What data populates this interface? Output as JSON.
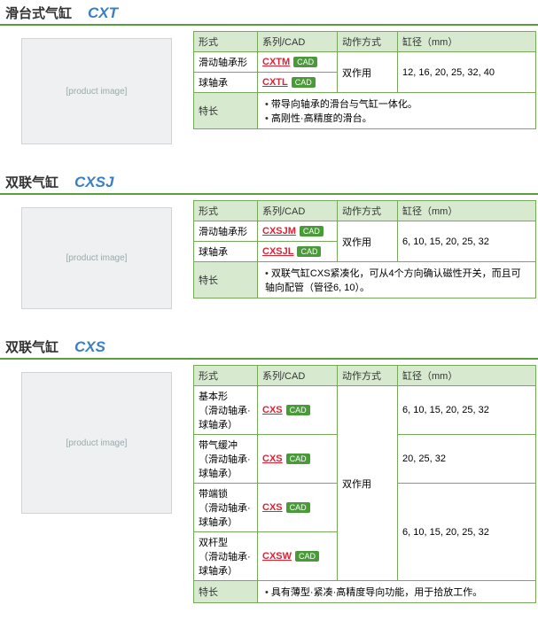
{
  "headers": {
    "type": "形式",
    "series": "系列/CAD",
    "action": "动作方式",
    "bore": "缸径（mm）",
    "feature": "特长"
  },
  "cad_label": "CAD",
  "sections": [
    {
      "title_cn": "滑台式气缸",
      "title_en": "CXT",
      "img_h": "ph1",
      "rows": [
        {
          "type": "滑动轴承形",
          "series": "CXTM",
          "action": "双作用",
          "bore": "12, 16, 20, 25, 32, 40",
          "action_rs": 2,
          "bore_rs": 2
        },
        {
          "type": "球轴承",
          "series": "CXTL"
        }
      ],
      "features": [
        "带导向轴承的滑台与气缸一体化。",
        "高刚性·高精度的滑台。"
      ]
    },
    {
      "title_cn": "双联气缸",
      "title_en": "CXSJ",
      "img_h": "ph2",
      "rows": [
        {
          "type": "滑动轴承形",
          "series": "CXSJM",
          "action": "双作用",
          "bore": "6, 10, 15, 20, 25, 32",
          "action_rs": 2,
          "bore_rs": 2
        },
        {
          "type": "球轴承",
          "series": "CXSJL"
        }
      ],
      "features": [
        "双联气缸CXS紧凑化，可从4个方向确认磁性开关，而且可轴向配管（管径6, 10）。"
      ]
    },
    {
      "title_cn": "双联气缸",
      "title_en": "CXS",
      "img_h": "ph3",
      "rows": [
        {
          "type": "基本形\n（滑动轴承·球轴承）",
          "series": "CXS",
          "action": "双作用",
          "bore": "6, 10, 15, 20, 25, 32",
          "action_rs": 4
        },
        {
          "type": "带气缓冲\n（滑动轴承·球轴承）",
          "series": "CXS",
          "bore": "20, 25, 32"
        },
        {
          "type": "带端锁\n（滑动轴承·球轴承）",
          "series": "CXS",
          "bore": "6, 10, 15, 20, 25, 32",
          "bore_rs": 2
        },
        {
          "type": "双杆型\n（滑动轴承·球轴承）",
          "series": "CXSW"
        }
      ],
      "features": [
        "具有薄型·紧凑·高精度导向功能，用于拾放工作。"
      ]
    }
  ]
}
